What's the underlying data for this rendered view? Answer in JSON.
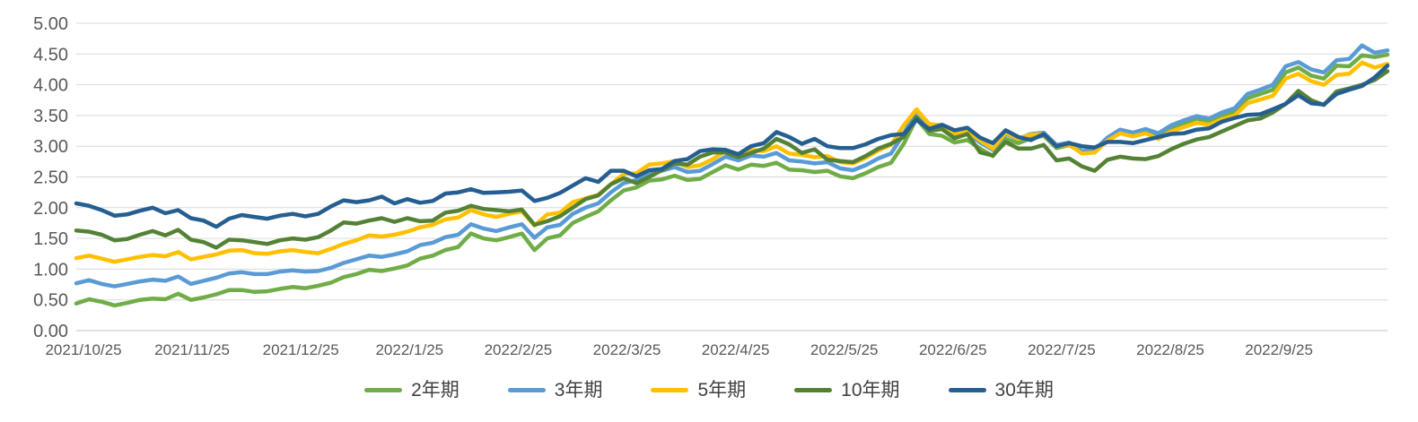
{
  "chart_data": {
    "type": "line",
    "title": "",
    "xlabel": "",
    "ylabel": "",
    "ylim": [
      0.0,
      5.0
    ],
    "y_tick_step": 0.5,
    "y_tick_labels": [
      "0.00",
      "0.50",
      "1.00",
      "1.50",
      "2.00",
      "2.50",
      "3.00",
      "3.50",
      "4.00",
      "4.50",
      "5.00"
    ],
    "x_tick_labels": [
      "2021/10/25",
      "2021/11/25",
      "2021/12/25",
      "2022/1/25",
      "2022/2/25",
      "2022/3/25",
      "2022/4/25",
      "2022/5/25",
      "2022/6/25",
      "2022/7/25",
      "2022/8/25",
      "2022/9/25"
    ],
    "grid": true,
    "legend_position": "bottom",
    "colors": {
      "grid": "#D9D9D9",
      "axis": "#C6C6C6",
      "tick_text": "#595959",
      "legend_text": "#404040",
      "background": "#FFFFFF"
    },
    "series": [
      {
        "name": "2年期",
        "color": "#70AD47",
        "values": [
          0.44,
          0.51,
          0.47,
          0.41,
          0.45,
          0.5,
          0.52,
          0.51,
          0.6,
          0.5,
          0.54,
          0.59,
          0.66,
          0.66,
          0.63,
          0.64,
          0.68,
          0.71,
          0.69,
          0.73,
          0.78,
          0.87,
          0.92,
          0.99,
          0.97,
          1.01,
          1.06,
          1.17,
          1.22,
          1.31,
          1.36,
          1.58,
          1.5,
          1.47,
          1.52,
          1.58,
          1.31,
          1.5,
          1.55,
          1.75,
          1.85,
          1.94,
          2.12,
          2.28,
          2.33,
          2.44,
          2.46,
          2.52,
          2.45,
          2.47,
          2.58,
          2.69,
          2.62,
          2.7,
          2.68,
          2.73,
          2.62,
          2.61,
          2.58,
          2.6,
          2.51,
          2.48,
          2.56,
          2.66,
          2.73,
          3.04,
          3.45,
          3.2,
          3.17,
          3.06,
          3.1,
          2.96,
          2.84,
          3.12,
          3.05,
          3.13,
          3.17,
          2.97,
          3.02,
          2.89,
          2.9,
          3.11,
          3.24,
          3.2,
          3.25,
          3.18,
          3.3,
          3.37,
          3.45,
          3.4,
          3.49,
          3.56,
          3.78,
          3.85,
          3.92,
          4.2,
          4.28,
          4.15,
          4.1,
          4.31,
          4.3,
          4.48,
          4.45,
          4.49
        ]
      },
      {
        "name": "3年期",
        "color": "#5B9BD5",
        "values": [
          0.77,
          0.82,
          0.76,
          0.72,
          0.76,
          0.8,
          0.83,
          0.81,
          0.88,
          0.76,
          0.81,
          0.86,
          0.93,
          0.95,
          0.92,
          0.92,
          0.96,
          0.98,
          0.96,
          0.97,
          1.02,
          1.1,
          1.16,
          1.22,
          1.2,
          1.24,
          1.29,
          1.39,
          1.43,
          1.52,
          1.56,
          1.73,
          1.66,
          1.62,
          1.68,
          1.73,
          1.51,
          1.68,
          1.72,
          1.9,
          2.0,
          2.07,
          2.25,
          2.4,
          2.45,
          2.57,
          2.6,
          2.66,
          2.58,
          2.6,
          2.71,
          2.83,
          2.77,
          2.85,
          2.83,
          2.89,
          2.77,
          2.75,
          2.72,
          2.74,
          2.64,
          2.61,
          2.69,
          2.8,
          2.88,
          3.2,
          3.59,
          3.35,
          3.31,
          3.18,
          3.22,
          3.06,
          2.94,
          3.2,
          3.12,
          3.2,
          3.22,
          3.02,
          3.06,
          2.92,
          2.94,
          3.14,
          3.27,
          3.22,
          3.28,
          3.21,
          3.34,
          3.42,
          3.49,
          3.45,
          3.55,
          3.62,
          3.85,
          3.92,
          4.0,
          4.3,
          4.37,
          4.25,
          4.2,
          4.4,
          4.42,
          4.64,
          4.52,
          4.56
        ]
      },
      {
        "name": "5年期",
        "color": "#FFC000",
        "values": [
          1.18,
          1.22,
          1.17,
          1.12,
          1.16,
          1.2,
          1.23,
          1.21,
          1.28,
          1.16,
          1.2,
          1.24,
          1.3,
          1.31,
          1.26,
          1.25,
          1.29,
          1.31,
          1.28,
          1.26,
          1.33,
          1.41,
          1.47,
          1.55,
          1.53,
          1.56,
          1.61,
          1.68,
          1.72,
          1.81,
          1.84,
          1.96,
          1.89,
          1.85,
          1.9,
          1.94,
          1.71,
          1.89,
          1.92,
          2.09,
          2.15,
          2.21,
          2.38,
          2.55,
          2.56,
          2.7,
          2.72,
          2.76,
          2.66,
          2.69,
          2.79,
          2.92,
          2.86,
          2.94,
          2.92,
          3.0,
          2.88,
          2.86,
          2.82,
          2.84,
          2.74,
          2.72,
          2.81,
          2.93,
          3.02,
          3.34,
          3.6,
          3.36,
          3.34,
          3.21,
          3.25,
          3.09,
          2.96,
          3.22,
          3.12,
          3.19,
          3.2,
          3.0,
          3.03,
          2.88,
          2.9,
          3.09,
          3.21,
          3.16,
          3.21,
          3.12,
          3.24,
          3.31,
          3.38,
          3.35,
          3.44,
          3.5,
          3.7,
          3.76,
          3.82,
          4.1,
          4.18,
          4.06,
          4.0,
          4.16,
          4.18,
          4.36,
          4.28,
          4.34
        ]
      },
      {
        "name": "10年期",
        "color": "#548235",
        "values": [
          1.63,
          1.61,
          1.56,
          1.47,
          1.49,
          1.56,
          1.62,
          1.55,
          1.64,
          1.48,
          1.44,
          1.35,
          1.48,
          1.47,
          1.44,
          1.41,
          1.47,
          1.5,
          1.48,
          1.52,
          1.63,
          1.76,
          1.74,
          1.79,
          1.83,
          1.77,
          1.83,
          1.78,
          1.79,
          1.92,
          1.95,
          2.03,
          1.98,
          1.96,
          1.94,
          1.97,
          1.72,
          1.78,
          1.86,
          2.0,
          2.14,
          2.2,
          2.38,
          2.48,
          2.4,
          2.5,
          2.61,
          2.72,
          2.7,
          2.83,
          2.9,
          2.9,
          2.82,
          2.89,
          2.96,
          3.12,
          3.03,
          2.89,
          2.95,
          2.78,
          2.76,
          2.74,
          2.84,
          2.96,
          3.04,
          3.15,
          3.48,
          3.25,
          3.28,
          3.13,
          3.2,
          2.9,
          2.85,
          3.07,
          2.96,
          2.96,
          3.02,
          2.77,
          2.8,
          2.67,
          2.6,
          2.78,
          2.83,
          2.8,
          2.79,
          2.84,
          2.95,
          3.04,
          3.11,
          3.15,
          3.24,
          3.33,
          3.42,
          3.45,
          3.55,
          3.69,
          3.9,
          3.75,
          3.67,
          3.89,
          3.94,
          4.0,
          4.08,
          4.22
        ]
      },
      {
        "name": "30年期",
        "color": "#255E91",
        "values": [
          2.07,
          2.03,
          1.96,
          1.87,
          1.89,
          1.95,
          2.0,
          1.91,
          1.96,
          1.83,
          1.79,
          1.69,
          1.82,
          1.88,
          1.85,
          1.82,
          1.87,
          1.9,
          1.86,
          1.9,
          2.02,
          2.12,
          2.09,
          2.12,
          2.18,
          2.07,
          2.14,
          2.08,
          2.11,
          2.23,
          2.25,
          2.3,
          2.24,
          2.25,
          2.26,
          2.28,
          2.11,
          2.16,
          2.24,
          2.36,
          2.48,
          2.42,
          2.6,
          2.6,
          2.51,
          2.61,
          2.63,
          2.76,
          2.79,
          2.92,
          2.95,
          2.94,
          2.87,
          3.0,
          3.05,
          3.23,
          3.15,
          3.04,
          3.12,
          3.0,
          2.97,
          2.97,
          3.03,
          3.12,
          3.18,
          3.2,
          3.43,
          3.28,
          3.35,
          3.26,
          3.3,
          3.14,
          3.05,
          3.26,
          3.15,
          3.1,
          3.2,
          3.0,
          3.05,
          3.0,
          2.98,
          3.07,
          3.07,
          3.05,
          3.1,
          3.15,
          3.2,
          3.21,
          3.27,
          3.29,
          3.4,
          3.46,
          3.51,
          3.52,
          3.6,
          3.69,
          3.83,
          3.7,
          3.68,
          3.85,
          3.92,
          3.98,
          4.12,
          4.31
        ]
      }
    ]
  }
}
